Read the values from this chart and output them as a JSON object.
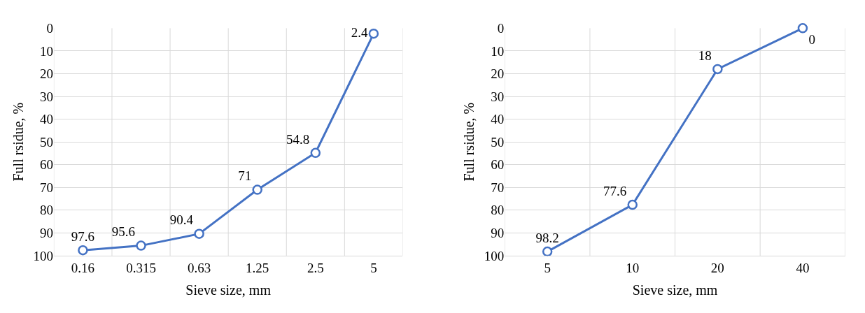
{
  "chart_data": [
    {
      "type": "line",
      "xlabel": "Sieve size, mm",
      "ylabel": "Full rsidue, %",
      "categories": [
        "0.16",
        "0.315",
        "0.63",
        "1.25",
        "2.5",
        "5"
      ],
      "series": [
        {
          "color": "#4472c4",
          "values": [
            97.6,
            95.6,
            90.4,
            71,
            54.8,
            2.4
          ]
        }
      ],
      "ylim": [
        100,
        0
      ],
      "yticks": [
        0,
        10,
        20,
        30,
        40,
        50,
        60,
        70,
        80,
        90,
        100
      ],
      "grid": true,
      "marker": "circle",
      "line_style": "solid",
      "data_labels": true
    },
    {
      "type": "line",
      "xlabel": "Sieve size, mm",
      "ylabel": "Full rsidue, %",
      "categories": [
        "5",
        "10",
        "20",
        "40"
      ],
      "series": [
        {
          "color": "#4472c4",
          "values": [
            98.2,
            77.6,
            18,
            0
          ]
        }
      ],
      "ylim": [
        100,
        0
      ],
      "yticks": [
        0,
        10,
        20,
        30,
        40,
        50,
        60,
        70,
        80,
        90,
        100
      ],
      "grid": true,
      "marker": "circle",
      "line_style": "solid",
      "data_labels": true
    }
  ]
}
